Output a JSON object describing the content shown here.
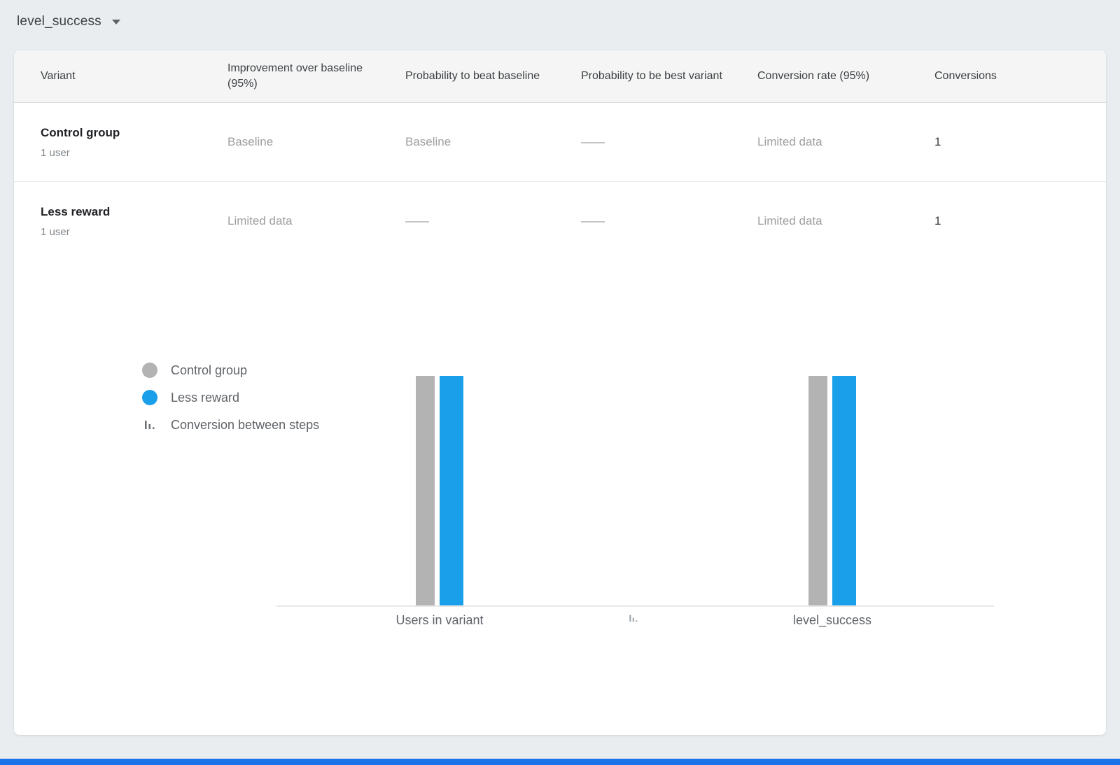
{
  "colors": {
    "page_bg": "#e9edf0",
    "card_bg": "#ffffff",
    "table_header_bg": "#f5f5f5",
    "bar_gray": "#b3b3b3",
    "bar_blue": "#1a9fea",
    "muted_text": "#9e9e9e",
    "bottom_bar": "#1a73e8"
  },
  "metric_selector": {
    "label": "level_success"
  },
  "table": {
    "columns": [
      "Variant",
      "Improvement over baseline (95%)",
      "Probability to beat baseline",
      "Probability to be best variant",
      "Conversion rate (95%)",
      "Conversions"
    ],
    "rows": [
      {
        "variant": "Control group",
        "users": "1 user",
        "improvement": "Baseline",
        "prob_beat_baseline": "Baseline",
        "prob_best_variant": "——",
        "conversion_rate": "Limited data",
        "conversions": "1"
      },
      {
        "variant": "Less reward",
        "users": "1 user",
        "improvement": "Limited data",
        "prob_beat_baseline": "——",
        "prob_best_variant": "——",
        "conversion_rate": "Limited data",
        "conversions": "1"
      }
    ]
  },
  "legend": {
    "items": [
      {
        "label": "Control group",
        "color": "#b3b3b3"
      },
      {
        "label": "Less reward",
        "color": "#1a9fea"
      },
      {
        "label": "Conversion between steps"
      }
    ]
  },
  "chart_data": {
    "type": "bar",
    "categories": [
      "Users in variant",
      "level_success"
    ],
    "series": [
      {
        "name": "Control group",
        "color": "#b3b3b3",
        "values": [
          1,
          1
        ]
      },
      {
        "name": "Less reward",
        "color": "#1a9fea",
        "values": [
          1,
          1
        ]
      }
    ],
    "ylim": [
      0,
      1
    ],
    "grid": false,
    "legend_position": "left",
    "xlabel": "",
    "ylabel": ""
  }
}
